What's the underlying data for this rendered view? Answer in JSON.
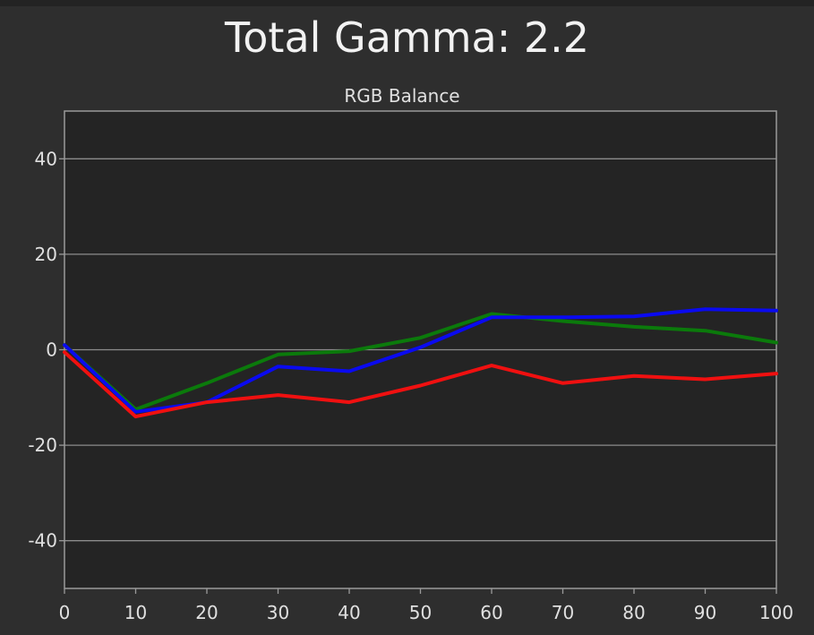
{
  "page": {
    "title": "Total Gamma: 2.2"
  },
  "chart_data": {
    "type": "line",
    "title": "RGB Balance",
    "xlabel": "",
    "ylabel": "",
    "xlim": [
      0,
      100
    ],
    "ylim": [
      -50,
      50
    ],
    "x_ticks": [
      0,
      10,
      20,
      30,
      40,
      50,
      60,
      70,
      80,
      90,
      100
    ],
    "y_ticks": [
      -40,
      -20,
      0,
      20,
      40
    ],
    "grid": true,
    "x": [
      0,
      10,
      20,
      30,
      40,
      50,
      60,
      70,
      80,
      90,
      100
    ],
    "series": [
      {
        "color": "#0b7a0b",
        "values": [
          1,
          -12.5,
          -7,
          -1,
          -0.3,
          2.5,
          7.5,
          6,
          4.8,
          4,
          1.5
        ]
      },
      {
        "color": "#0a0af0",
        "values": [
          1,
          -13,
          -11,
          -3.5,
          -4.5,
          0.5,
          6.8,
          6.8,
          7,
          8.5,
          8.2
        ]
      },
      {
        "color": "#f01010",
        "values": [
          -0.5,
          -14,
          -11,
          -9.5,
          -11,
          -7.5,
          -3.3,
          -7,
          -5.5,
          -6.2,
          -5
        ]
      }
    ]
  }
}
